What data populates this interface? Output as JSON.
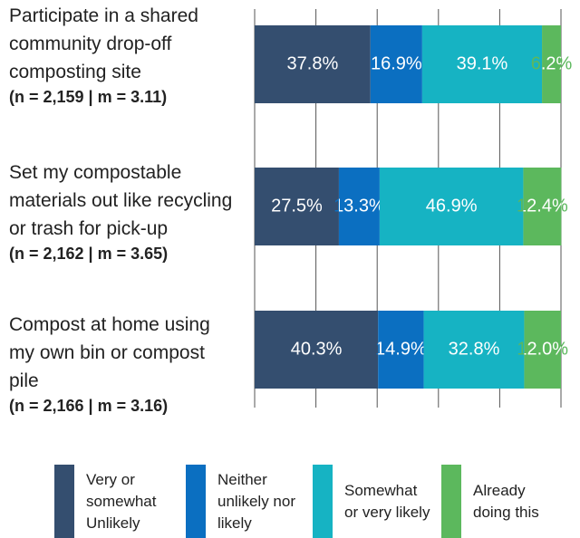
{
  "chart_data": {
    "type": "stacked_bar_horizontal",
    "categories": [
      "Participate in a shared community drop-off composting site",
      "Set my compostable materials out like recycling or trash for pick-up",
      "Compost at home using my own bin or compost pile"
    ],
    "category_notes": [
      "(n = 2,159 | m = 3.11)",
      "(n = 2,162 | m = 3.65)",
      "(n = 2,166 | m = 3.16)"
    ],
    "series": [
      {
        "name": "Very or somewhat Unlikely",
        "color": "#344e6f",
        "values": [
          37.8,
          27.5,
          40.3
        ],
        "value_labels": [
          "37.8%",
          "27.5%",
          "40.3%"
        ]
      },
      {
        "name": "Neither unlikely nor likely",
        "color": "#0b6fc1",
        "values": [
          16.9,
          13.3,
          14.9
        ],
        "value_labels": [
          "16.9%",
          "13.3%",
          "14.9%"
        ]
      },
      {
        "name": "Somewhat or very likely",
        "color": "#16b3c3",
        "values": [
          39.1,
          46.9,
          32.8
        ],
        "value_labels": [
          "39.1%",
          "46.9%",
          "32.8%"
        ]
      },
      {
        "name": "Already doing this",
        "color": "#5cb85d",
        "values": [
          6.2,
          12.4,
          12.0
        ],
        "value_labels": [
          "6.2%",
          "12.4%",
          "12.0%"
        ]
      }
    ],
    "xlim": [
      0,
      100
    ],
    "xticks": [
      0,
      20,
      40,
      60,
      80,
      100
    ],
    "grid": true,
    "legend": "bottom"
  }
}
